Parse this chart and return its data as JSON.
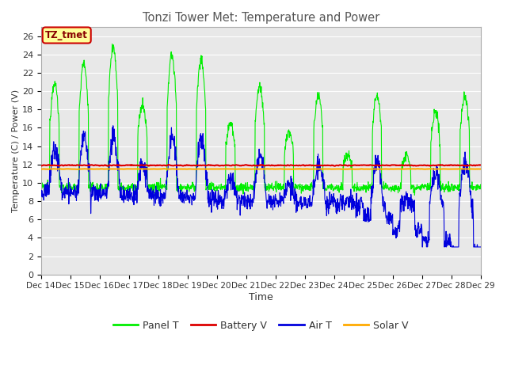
{
  "title": "Tonzi Tower Met: Temperature and Power",
  "xlabel": "Time",
  "ylabel": "Temperature (C) / Power (V)",
  "ylim": [
    0,
    27
  ],
  "yticks": [
    0,
    2,
    4,
    6,
    8,
    10,
    12,
    14,
    16,
    18,
    20,
    22,
    24,
    26
  ],
  "x_labels": [
    "Dec 14",
    "Dec 15",
    "Dec 16",
    "Dec 17",
    "Dec 18",
    "Dec 19",
    "Dec 20",
    "Dec 21",
    "Dec 22",
    "Dec 23",
    "Dec 24",
    "Dec 25",
    "Dec 26",
    "Dec 27",
    "Dec 28",
    "Dec 29"
  ],
  "n_days": 15,
  "annotation_text": "TZ_tmet",
  "annotation_bg": "#ffff99",
  "annotation_border": "#cc0000",
  "legend_entries": [
    "Panel T",
    "Battery V",
    "Air T",
    "Solar V"
  ],
  "legend_colors": [
    "#00ee00",
    "#dd0000",
    "#0000dd",
    "#ffaa00"
  ],
  "panel_t_color": "#00ee00",
  "battery_v_color": "#dd0000",
  "air_t_color": "#0000dd",
  "solar_v_color": "#ffaa00",
  "bg_color": "#ffffff",
  "plot_bg_color": "#e8e8e8",
  "grid_color": "#ffffff",
  "title_color": "#555555",
  "peak_heights": [
    21,
    23,
    25,
    18.5,
    24,
    23.5,
    16.5,
    20.5,
    15.5,
    19.5,
    13,
    19.5,
    13,
    17.5,
    19.5
  ],
  "battery_v_level": 11.9,
  "solar_v_level": 11.5
}
